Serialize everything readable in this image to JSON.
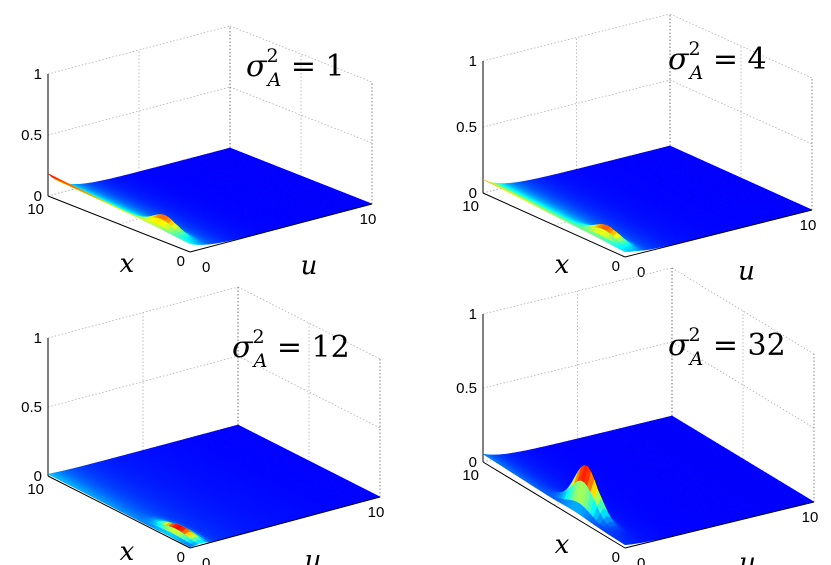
{
  "chart_data": [
    {
      "type": "surface",
      "title": {
        "symbol": "σ",
        "superscript": "2",
        "subscript": "A",
        "relation": "= 1"
      },
      "xlabel": "x",
      "ylabel": "u",
      "xlim": [
        0,
        10
      ],
      "ylim": [
        0,
        10
      ],
      "zlim": [
        0,
        1
      ],
      "x_ticks": [
        "10",
        "0"
      ],
      "y_ticks": [
        "0",
        "10"
      ],
      "z_ticks": [
        "0",
        "0.5",
        "1"
      ],
      "grid": true,
      "surface_shape": {
        "edge_value_at_u0": 0.18,
        "peak_value": 0.2,
        "peak_x": 2.5
      }
    },
    {
      "type": "surface",
      "title": {
        "symbol": "σ",
        "superscript": "2",
        "subscript": "A",
        "relation": "= 4"
      },
      "xlabel": "x",
      "ylabel": "u",
      "xlim": [
        0,
        10
      ],
      "ylim": [
        0,
        10
      ],
      "zlim": [
        0,
        1
      ],
      "x_ticks": [
        "10",
        "0"
      ],
      "y_ticks": [
        "0",
        "10"
      ],
      "z_ticks": [
        "0",
        "0.5",
        "1"
      ],
      "grid": true,
      "surface_shape": {
        "edge_value_at_u0": 0.1,
        "peak_value": 0.14,
        "peak_x": 2.0
      }
    },
    {
      "type": "surface",
      "title": {
        "symbol": "σ",
        "superscript": "2",
        "subscript": "A",
        "relation": "= 12"
      },
      "xlabel": "x",
      "ylabel": "u",
      "xlim": [
        0,
        10
      ],
      "ylim": [
        0,
        10
      ],
      "zlim": [
        0,
        1
      ],
      "x_ticks": [
        "10",
        "0"
      ],
      "y_ticks": [
        "0",
        "10"
      ],
      "z_ticks": [
        "0",
        "0.5",
        "1"
      ],
      "grid": true,
      "surface_shape": {
        "edge_value_at_u0": 0.01,
        "peak_value": 0.06,
        "peak_x": 1.5
      }
    },
    {
      "type": "surface",
      "title": {
        "symbol": "σ",
        "superscript": "2",
        "subscript": "A",
        "relation": "= 32"
      },
      "xlabel": "x",
      "ylabel": "u",
      "xlim": [
        0,
        10
      ],
      "ylim": [
        0,
        10
      ],
      "zlim": [
        0,
        1
      ],
      "x_ticks": [
        "10",
        "0"
      ],
      "y_ticks": [
        "0",
        "10"
      ],
      "z_ticks": [
        "0",
        "0.5",
        "1"
      ],
      "grid": true,
      "surface_shape": {
        "edge_value_at_u0": 0.05,
        "peak_value": 0.34,
        "peak_x": 3.5
      }
    }
  ]
}
